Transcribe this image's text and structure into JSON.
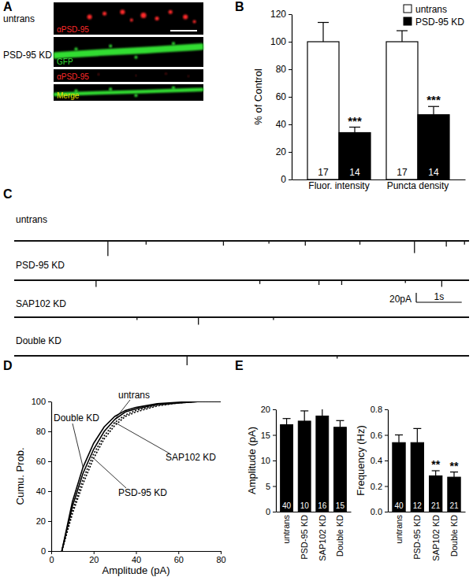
{
  "chart_data": [
    {
      "panel": "A",
      "type": "image",
      "rows": [
        {
          "label": "untrans",
          "channels": [
            {
              "label": "αPSD-95",
              "color": "#ff2a2a"
            }
          ]
        },
        {
          "label": "PSD-95 KD",
          "channels": [
            {
              "label": "GFP",
              "color": "#33dd33"
            },
            {
              "label": "αPSD-95",
              "color": "#ff2a2a"
            },
            {
              "label": "Merge",
              "color": "#e8e000"
            }
          ]
        }
      ]
    },
    {
      "panel": "B",
      "type": "bar",
      "categories": [
        "Fluor. intensity",
        "Puncta density"
      ],
      "y_label": "% of Control",
      "ylim": [
        0,
        120
      ],
      "yticks": [
        0,
        20,
        40,
        60,
        80,
        100,
        120
      ],
      "legend": "top-right",
      "series": [
        {
          "name": "untrans",
          "color": "#ffffff",
          "values": [
            100,
            100
          ],
          "errors": [
            14,
            8
          ],
          "n": [
            17,
            17
          ]
        },
        {
          "name": "PSD-95 KD",
          "color": "#000000",
          "values": [
            34,
            47
          ],
          "errors": [
            4,
            6
          ],
          "n": [
            14,
            14
          ],
          "significance": [
            "***",
            "***"
          ]
        }
      ]
    },
    {
      "panel": "C",
      "type": "trace",
      "xlim": [
        0,
        10
      ],
      "ylim": [
        -40,
        10
      ],
      "scale_bar": {
        "x": 1,
        "x_label": "1s",
        "y": 20,
        "y_label": "20pA"
      },
      "series": [
        {
          "name": "untrans",
          "x": [
            2.06,
            2.9,
            4.6,
            5.6,
            6.4,
            7.6,
            8.8,
            9.5,
            9.9
          ],
          "values": [
            -32,
            -8,
            -10,
            -6,
            -10,
            -8,
            -26,
            -12,
            -8
          ]
        },
        {
          "name": "PSD-95 KD",
          "x": [
            1.8,
            5.4,
            6.7,
            7.2,
            8.6,
            9.4
          ],
          "values": [
            -14,
            -8,
            -10,
            -10,
            -6,
            -14
          ]
        },
        {
          "name": "SAP102 KD",
          "x": [
            2.7,
            4.05,
            5.7
          ],
          "values": [
            -6,
            -16,
            -6
          ]
        },
        {
          "name": "Double KD",
          "x": [
            3.8,
            7.1
          ],
          "values": [
            -20,
            -6
          ]
        }
      ]
    },
    {
      "panel": "D",
      "type": "line",
      "x_label": "Amplitude (pA)",
      "y_label": "Cumu. Prob.",
      "xlim": [
        0,
        80
      ],
      "xticks": [
        0,
        20,
        40,
        60,
        80
      ],
      "ylim": [
        0,
        100
      ],
      "yticks": [
        0,
        20,
        40,
        60,
        80,
        100
      ],
      "x": [
        5,
        10,
        15,
        20,
        25,
        30,
        35,
        40,
        50,
        60,
        70,
        80
      ],
      "series": [
        {
          "name": "untrans",
          "color": "#000000",
          "line_style": "solid",
          "values": [
            0,
            30,
            52,
            68,
            80,
            88,
            93,
            95,
            98,
            99,
            100,
            100
          ]
        },
        {
          "name": "PSD-95 KD",
          "color": "#000000",
          "line_style": "dotted",
          "values": [
            0,
            25,
            45,
            62,
            75,
            84,
            90,
            93,
            97,
            99,
            100,
            100
          ]
        },
        {
          "name": "SAP102 KD",
          "color": "#000000",
          "line_style": "dotted",
          "values": [
            0,
            27,
            48,
            65,
            77,
            86,
            91,
            94,
            97.5,
            99,
            100,
            100
          ]
        },
        {
          "name": "Double KD",
          "color": "#000000",
          "line_style": "solid",
          "values": [
            0,
            33,
            56,
            72,
            83,
            90,
            94,
            96,
            98.5,
            99.5,
            100,
            100
          ]
        }
      ]
    },
    {
      "panel": "E",
      "type": "bar",
      "y_label": "Amplitude (pA)",
      "color": "#000000",
      "categories": [
        "untrans",
        "PSD-95 KD",
        "SAP102 KD",
        "Double KD"
      ],
      "values": [
        17.0,
        17.7,
        18.7,
        16.5
      ],
      "errors": [
        1.2,
        2.0,
        1.7,
        1.3
      ],
      "n": [
        40,
        10,
        16,
        15
      ],
      "ylim": [
        0,
        20
      ],
      "yticks": [
        0,
        5,
        10,
        15,
        20
      ]
    },
    {
      "type": "bar",
      "y_label": "Frequency (Hz)",
      "color": "#000000",
      "categories": [
        "untrans",
        "PSD-95 KD",
        "SAP102 KD",
        "Double KD"
      ],
      "values": [
        0.54,
        0.54,
        0.28,
        0.27
      ],
      "errors": [
        0.06,
        0.11,
        0.04,
        0.04
      ],
      "n": [
        40,
        12,
        21,
        21
      ],
      "significance": [
        null,
        null,
        "**",
        "**"
      ],
      "ylim": [
        0,
        0.8
      ],
      "yticks": [
        {
          "value": 0,
          "label": "0.0"
        },
        0.2,
        0.4,
        0.6,
        0.8
      ]
    }
  ]
}
